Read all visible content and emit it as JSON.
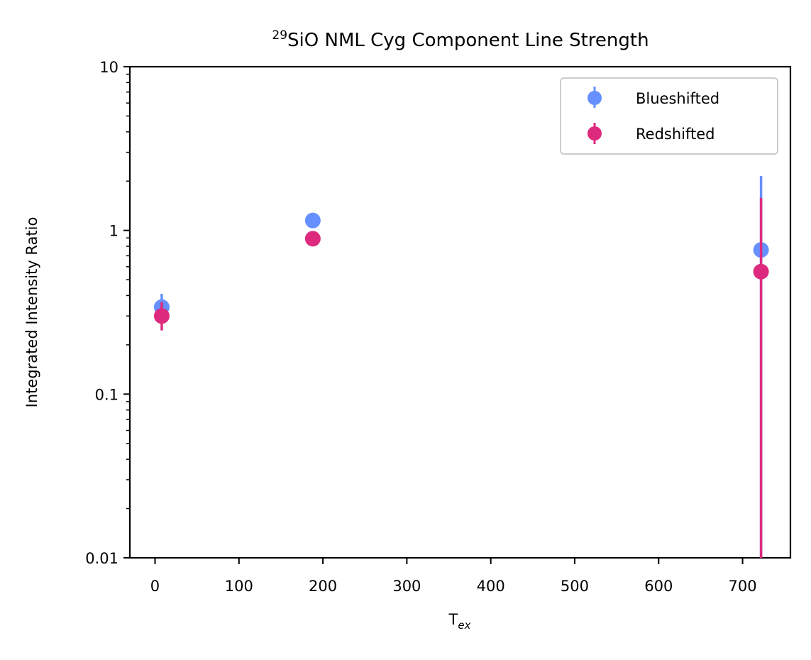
{
  "chart_data": {
    "type": "scatter",
    "title_superscript": "29",
    "title": "SiO NML Cyg Component Line Strength",
    "xlabel_main": "T",
    "xlabel_sub": "ex",
    "ylabel": "Integrated Intensity Ratio",
    "xlim": [
      -30,
      757
    ],
    "ylim": [
      0.01,
      10
    ],
    "yscale": "log",
    "x_ticks": [
      0,
      100,
      200,
      300,
      400,
      500,
      600,
      700
    ],
    "x_tick_labels": [
      "0",
      "100",
      "200",
      "300",
      "400",
      "500",
      "600",
      "700"
    ],
    "y_ticks": [
      0.01,
      0.1,
      1,
      10
    ],
    "y_tick_labels": [
      "0.01",
      "0.1",
      "1",
      "10"
    ],
    "legend_position": "top-right",
    "series": [
      {
        "name": "Blueshifted",
        "color": "#6690ff",
        "points": [
          {
            "x": 8,
            "y": 0.34,
            "err_low": 0.3,
            "err_high": 0.41
          },
          {
            "x": 188,
            "y": 1.15,
            "err_low": 1.15,
            "err_high": 1.15
          },
          {
            "x": 722,
            "y": 0.76,
            "err_low": 0.01,
            "err_high": 2.15
          }
        ]
      },
      {
        "name": "Redshifted",
        "color": "#dd2a7e",
        "points": [
          {
            "x": 8,
            "y": 0.3,
            "err_low": 0.245,
            "err_high": 0.365
          },
          {
            "x": 188,
            "y": 0.89,
            "err_low": 0.89,
            "err_high": 0.89
          },
          {
            "x": 722,
            "y": 0.56,
            "err_low": 0.01,
            "err_high": 1.58
          }
        ]
      }
    ]
  }
}
